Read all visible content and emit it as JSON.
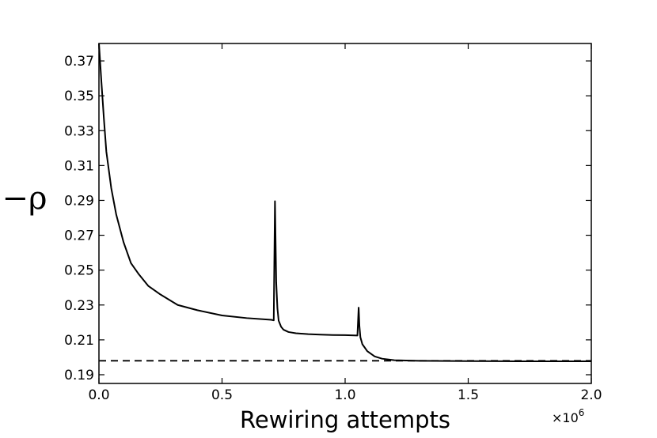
{
  "chart_data": {
    "type": "line",
    "title": "",
    "xlabel": "Rewiring attempts",
    "ylabel": "−ρ",
    "x_multiplier": "×10",
    "x_multiplier_exp": "6",
    "xlim": [
      0.0,
      2.0
    ],
    "ylim": [
      0.185,
      0.38
    ],
    "x_ticks": [
      0.0,
      0.5,
      1.0,
      1.5,
      2.0
    ],
    "x_tick_labels": [
      "0.0",
      "0.5",
      "1.0",
      "1.5",
      "2.0"
    ],
    "y_ticks": [
      0.19,
      0.21,
      0.23,
      0.25,
      0.27,
      0.29,
      0.31,
      0.33,
      0.35,
      0.37
    ],
    "y_tick_labels": [
      "0.19",
      "0.21",
      "0.23",
      "0.25",
      "0.27",
      "0.29",
      "0.31",
      "0.33",
      "0.35",
      "0.37"
    ],
    "grid": false,
    "series": [
      {
        "style": "solid",
        "color": "#000000",
        "x": [
          0.0,
          0.01,
          0.02,
          0.03,
          0.05,
          0.07,
          0.1,
          0.13,
          0.16,
          0.2,
          0.25,
          0.32,
          0.4,
          0.5,
          0.6,
          0.7,
          0.71,
          0.715,
          0.72,
          0.725,
          0.73,
          0.74,
          0.75,
          0.77,
          0.8,
          0.85,
          0.9,
          0.95,
          1.0,
          1.05,
          1.055,
          1.058,
          1.062,
          1.07,
          1.09,
          1.12,
          1.15,
          1.2,
          1.3,
          1.5,
          1.7,
          2.0
        ],
        "y": [
          0.38,
          0.358,
          0.337,
          0.318,
          0.297,
          0.282,
          0.266,
          0.254,
          0.248,
          0.241,
          0.236,
          0.23,
          0.227,
          0.224,
          0.2225,
          0.2215,
          0.2212,
          0.2895,
          0.243,
          0.228,
          0.221,
          0.2175,
          0.2158,
          0.2145,
          0.2138,
          0.2133,
          0.213,
          0.2128,
          0.2127,
          0.2125,
          0.2285,
          0.218,
          0.2115,
          0.2075,
          0.2035,
          0.2005,
          0.1992,
          0.1983,
          0.198,
          0.1978,
          0.1977,
          0.1977
        ]
      },
      {
        "style": "dashed",
        "color": "#000000",
        "x": [
          0.0,
          2.0
        ],
        "y": [
          0.198,
          0.198
        ]
      }
    ]
  }
}
